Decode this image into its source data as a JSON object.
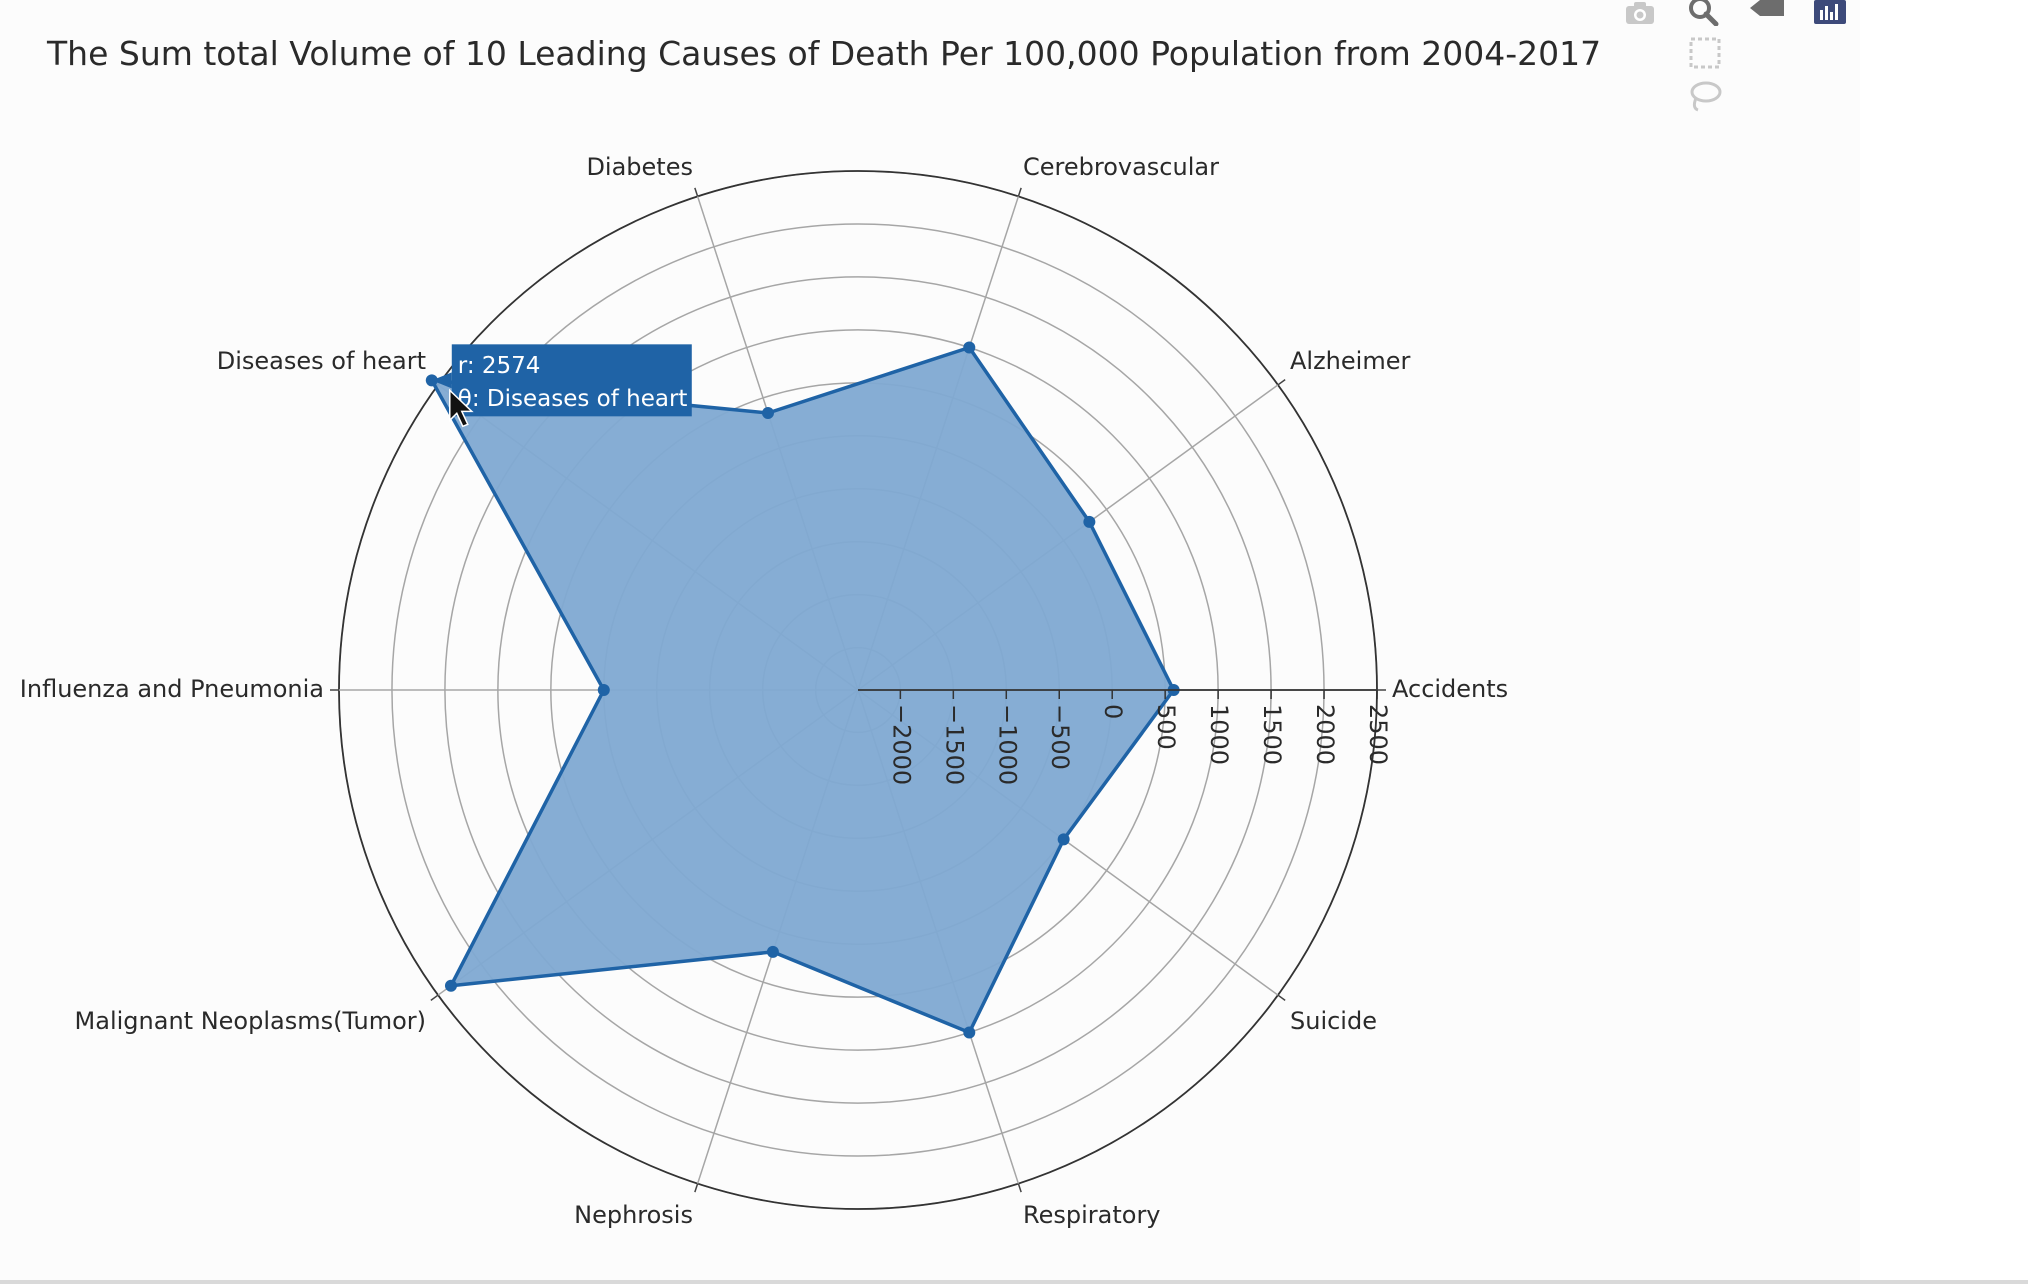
{
  "chart_data": {
    "type": "polar-area",
    "title": "The Sum total Volume of 10 Leading Causes of Death Per 100,000 Population from 2004-2017",
    "theta_categories": [
      "Accidents",
      "Alzheimer",
      "Cerebrovascular",
      "Diabetes",
      "Diseases of heart",
      "Influenza and Pneumonia",
      "Malignant Neoplasms(Tumor)",
      "Nephrosis",
      "Respiratory",
      "Suicide"
    ],
    "series": [
      {
        "values": [
          580,
          300,
          1000,
          350,
          2574,
          0,
          2350,
          200,
          1000,
          0
        ],
        "color": "#1f63a6",
        "fill": "#7fa9d2"
      }
    ],
    "radial_ticks": [
      -2000,
      -1500,
      -1000,
      -500,
      0,
      500,
      1000,
      1500,
      2000,
      2500
    ],
    "radial_range": [
      -2400,
      2500
    ],
    "grid": true,
    "hover": {
      "r_label": "r: 2574",
      "theta_label": "θ: Diseases of heart",
      "index": 4
    }
  },
  "modebar": {
    "icons": [
      "camera-icon",
      "zoom-icon",
      "pan-icon",
      "bar-chart-logo-icon",
      "box-select-icon",
      "lasso-select-icon"
    ]
  }
}
